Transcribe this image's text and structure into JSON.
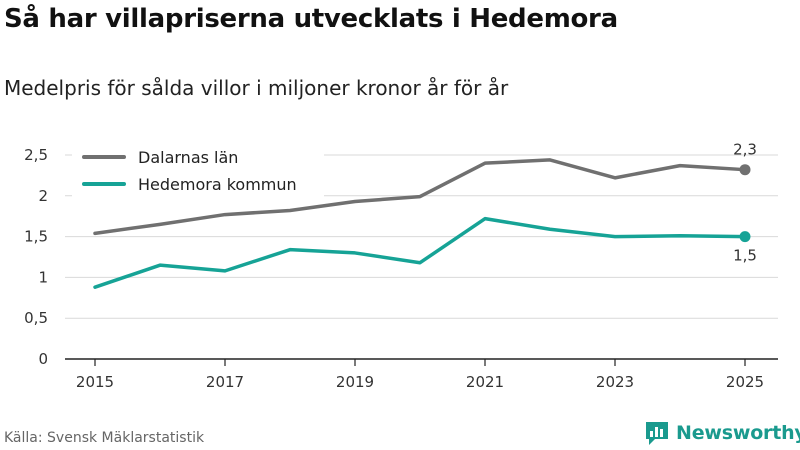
{
  "header": {
    "title": "Så har villapriserna utvecklats i Hedemora",
    "subtitle": "Medelpris för sålda villor i miljoner kronor år för år"
  },
  "footer": {
    "source": "Källa: Svensk Mäklarstatistik",
    "brand": "Newsworthy",
    "brand_icon": "bar-chart-speech-icon"
  },
  "colors": {
    "dalarna": "#707070",
    "hedemora": "#16a396",
    "grid": "#d9d9d9",
    "axis": "#222222",
    "brand": "#1a9a8e"
  },
  "chart_data": {
    "type": "line",
    "title": "Så har villapriserna utvecklats i Hedemora",
    "subtitle": "Medelpris för sålda villor i miljoner kronor år för år",
    "x": [
      2015,
      2016,
      2017,
      2018,
      2019,
      2020,
      2021,
      2022,
      2023,
      2024,
      2025
    ],
    "series": [
      {
        "name": "Dalarnas län",
        "values": [
          1.54,
          1.65,
          1.77,
          1.82,
          1.93,
          1.99,
          2.4,
          2.44,
          2.22,
          2.37,
          2.32
        ]
      },
      {
        "name": "Hedemora kommun",
        "values": [
          0.88,
          1.15,
          1.08,
          1.34,
          1.3,
          1.18,
          1.72,
          1.59,
          1.5,
          1.51,
          1.5
        ]
      }
    ],
    "xticks": [
      2015,
      2017,
      2019,
      2021,
      2023,
      2025
    ],
    "xtick_labels": [
      "2015",
      "2017",
      "2019",
      "2021",
      "2023",
      "2025"
    ],
    "yticks": [
      0,
      0.5,
      1,
      1.5,
      2,
      2.5
    ],
    "ytick_labels": [
      "0",
      "0,5",
      "1",
      "1,5",
      "2",
      "2,5"
    ],
    "ylim": [
      0,
      2.5
    ],
    "xlim": [
      2015,
      2025
    ],
    "end_labels": [
      "2,3",
      "1,5"
    ],
    "legend_position": "top-left",
    "grid": true,
    "xlabel": "",
    "ylabel": ""
  }
}
